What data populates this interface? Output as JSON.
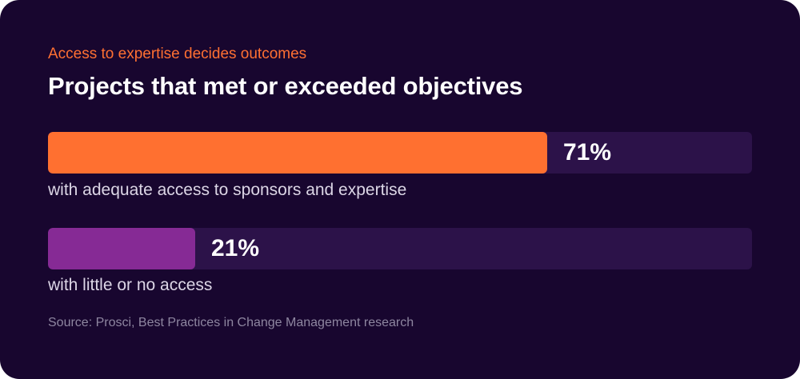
{
  "colors": {
    "background": "#18062f",
    "track": "#2c1249",
    "eyebrow": "#ff7032",
    "bar_1": "#ff7030",
    "bar_2": "#862a95"
  },
  "eyebrow": "Access to expertise decides outcomes",
  "title": "Projects that met or exceeded objectives",
  "source": "Source: Prosci, Best Practices in Change Management research",
  "chart_data": {
    "type": "bar",
    "orientation": "horizontal",
    "title": "Projects that met or exceeded objectives",
    "xlim": [
      0,
      100
    ],
    "grid": false,
    "categories": [
      "with adequate access to sponsors and expertise",
      "with little or no access"
    ],
    "values": [
      71,
      21
    ],
    "value_labels": [
      "71%",
      "21%"
    ]
  }
}
